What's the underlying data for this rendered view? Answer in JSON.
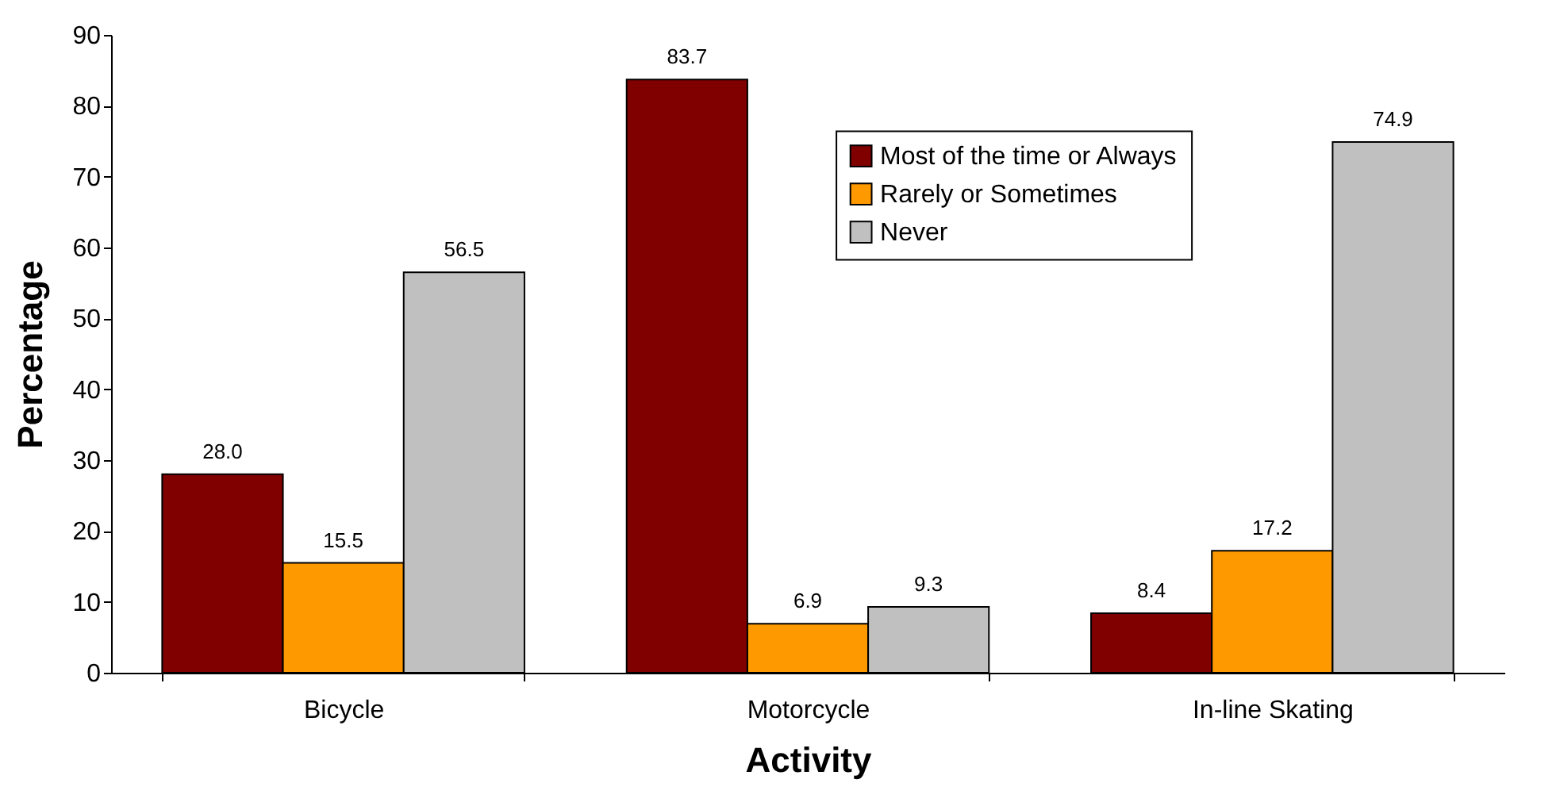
{
  "chart_data": {
    "type": "bar",
    "xlabel": "Activity",
    "ylabel": "Percentage",
    "categories": [
      "Bicycle",
      "Motorcycle",
      "In-line Skating"
    ],
    "series": [
      {
        "name": "Most of the time or Always",
        "color": "#800000",
        "values": [
          28.0,
          83.7,
          8.4
        ],
        "value_labels": [
          "28.0",
          "83.7",
          "8.4"
        ]
      },
      {
        "name": "Rarely or Sometimes",
        "color": "#ff9900",
        "values": [
          15.5,
          6.9,
          17.2
        ],
        "value_labels": [
          "15.5",
          "6.9",
          "17.2"
        ]
      },
      {
        "name": "Never",
        "color": "#c0c0c0",
        "values": [
          56.5,
          9.3,
          74.9
        ],
        "value_labels": [
          "56.5",
          "9.3",
          "74.9"
        ]
      }
    ],
    "ylim": [
      0,
      90
    ],
    "yticks": [
      0,
      10,
      20,
      30,
      40,
      50,
      60,
      70,
      80,
      90
    ],
    "legend": "top right"
  }
}
